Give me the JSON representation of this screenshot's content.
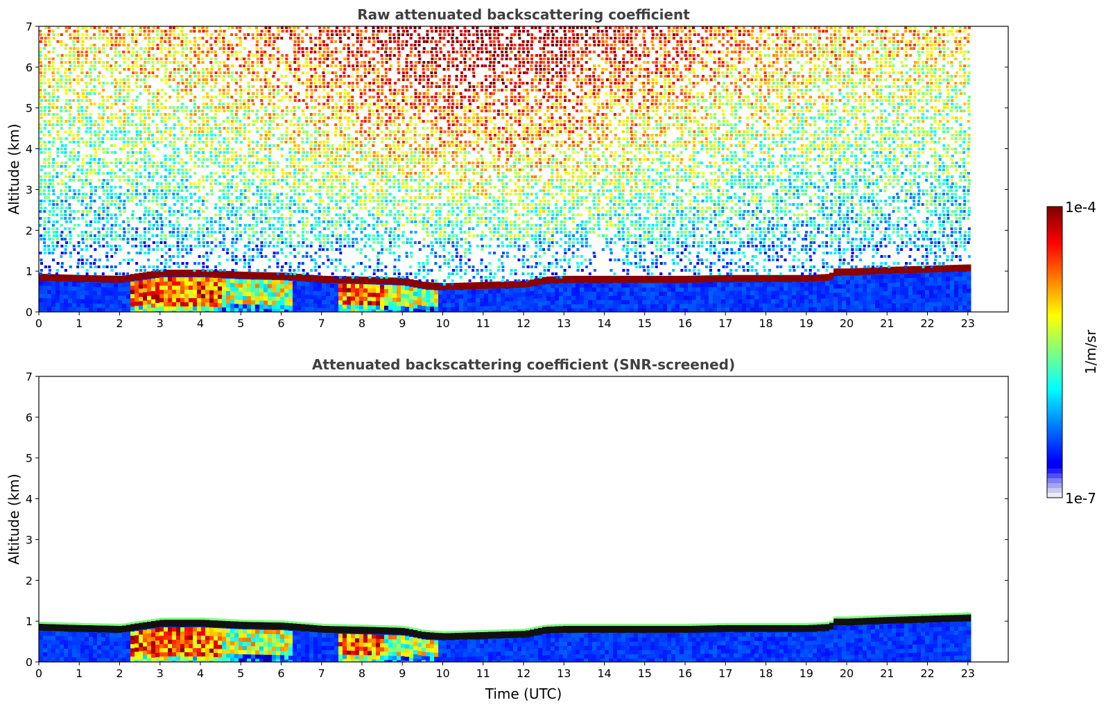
{
  "chart_data": [
    {
      "type": "heatmap",
      "title": "Raw attenuated backscattering coefficient",
      "xlabel": "",
      "ylabel": "Altitude (km)",
      "xlim": [
        0,
        24
      ],
      "ylim": [
        0,
        7
      ],
      "x_ticks": [
        0,
        1,
        2,
        3,
        4,
        5,
        6,
        7,
        8,
        9,
        10,
        11,
        12,
        13,
        14,
        15,
        16,
        17,
        18,
        19,
        20,
        21,
        22,
        23
      ],
      "y_ticks": [
        0,
        1,
        2,
        3,
        4,
        5,
        6,
        7
      ],
      "data_extent_x": [
        0,
        23
      ],
      "screened": false,
      "layer_height_km": {
        "time": [
          0,
          1,
          2,
          2.3,
          3,
          4,
          5,
          6,
          7,
          8,
          9,
          9.5,
          10,
          11,
          12,
          12.5,
          13,
          14,
          15,
          16,
          17,
          18,
          19,
          19.55,
          19.65,
          20,
          21,
          22,
          23
        ],
        "height": [
          0.85,
          0.82,
          0.8,
          0.85,
          0.95,
          0.95,
          0.9,
          0.88,
          0.8,
          0.78,
          0.75,
          0.65,
          0.62,
          0.65,
          0.68,
          0.78,
          0.8,
          0.8,
          0.8,
          0.8,
          0.82,
          0.82,
          0.82,
          0.85,
          0.98,
          0.98,
          1.02,
          1.05,
          1.08
        ]
      },
      "aerosol_regions": [
        {
          "from": 2.2,
          "to": 4.5,
          "intensity": "high"
        },
        {
          "from": 4.5,
          "to": 6.2,
          "intensity": "medium"
        },
        {
          "from": 7.4,
          "to": 8.5,
          "intensity": "high"
        },
        {
          "from": 8.5,
          "to": 9.8,
          "intensity": "medium"
        }
      ]
    },
    {
      "type": "heatmap",
      "title": "Attenuated backscattering coefficient (SNR-screened)",
      "xlabel": "Time (UTC)",
      "ylabel": "Altitude (km)",
      "xlim": [
        0,
        24
      ],
      "ylim": [
        0,
        7
      ],
      "x_ticks": [
        0,
        1,
        2,
        3,
        4,
        5,
        6,
        7,
        8,
        9,
        10,
        11,
        12,
        13,
        14,
        15,
        16,
        17,
        18,
        19,
        20,
        21,
        22,
        23
      ],
      "y_ticks": [
        0,
        1,
        2,
        3,
        4,
        5,
        6,
        7
      ],
      "data_extent_x": [
        0,
        23
      ],
      "screened": true
    }
  ],
  "colorbar": {
    "label": "1/m/sr",
    "tick_top": "1e-4",
    "tick_bottom": "1e-7",
    "scale": "log",
    "range": [
      1e-07,
      0.0001
    ],
    "colormap": [
      "#00007f",
      "#0000ff",
      "#007fff",
      "#00ffff",
      "#7fff7f",
      "#ffff00",
      "#ff7f00",
      "#ff0000",
      "#7f0000"
    ],
    "low_end_colors": [
      "#ececf8",
      "#c8c8f4",
      "#a4a4f2",
      "#7f7ff4",
      "#5050f6",
      "#2020fa"
    ]
  }
}
